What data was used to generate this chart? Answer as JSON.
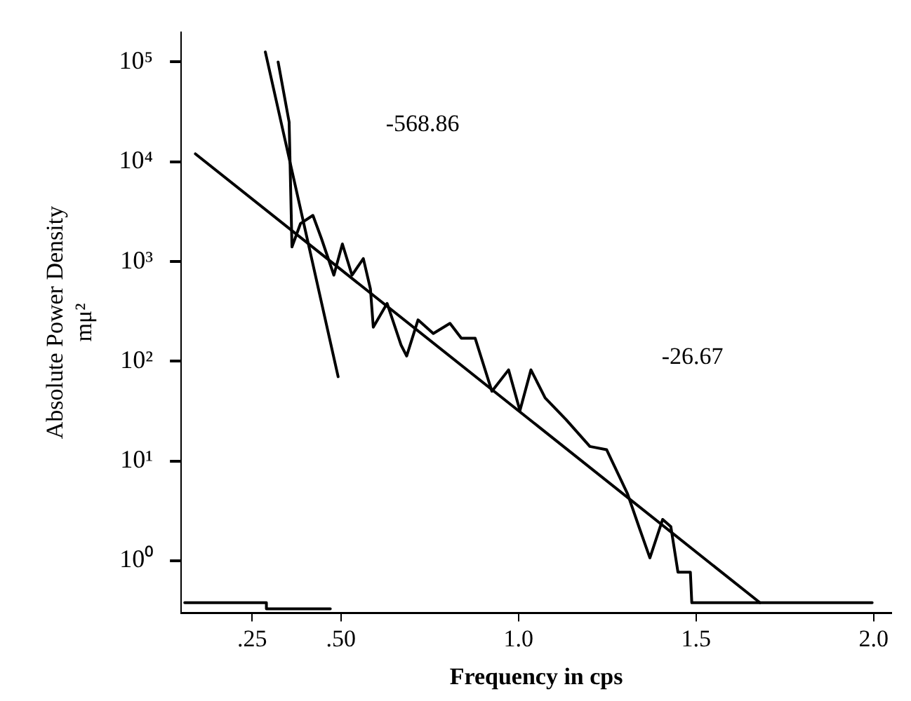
{
  "chart_data": {
    "type": "line",
    "xlabel": "Frequency in cps",
    "ylabel": "Absolute Power Density\nmμ²",
    "log": "y",
    "grid": false,
    "legend": false,
    "marker": "none",
    "line_style": "solid",
    "xlim": [
      0.05,
      2.05
    ],
    "xticks": [
      {
        "value": 0.25,
        "label": ".25"
      },
      {
        "value": 0.5,
        "label": ".50"
      },
      {
        "value": 1,
        "label": "1.0"
      },
      {
        "value": 1.5,
        "label": "1.5"
      },
      {
        "value": 2,
        "label": "2.0"
      }
    ],
    "ylim": [
      0.3,
      200000
    ],
    "yticks": [
      {
        "value": 1,
        "label": "10⁰"
      },
      {
        "value": 10,
        "label": "10¹"
      },
      {
        "value": 100,
        "label": "10²"
      },
      {
        "value": 1000,
        "label": "10³"
      },
      {
        "value": 10000,
        "label": "10⁴"
      },
      {
        "value": 100000,
        "label": "10⁵"
      }
    ],
    "series": [
      {
        "color": "#000000",
        "x": [
          0.323,
          0.354,
          0.362,
          0.386,
          0.421,
          0.445,
          0.48,
          0.504,
          0.531,
          0.563,
          0.583,
          0.591,
          0.63,
          0.669,
          0.685,
          0.717,
          0.76,
          0.807,
          0.839,
          0.878,
          0.925,
          0.972,
          1.004,
          1.035,
          1.075,
          1.134,
          1.201,
          1.248,
          1.307,
          1.339,
          1.37,
          1.406,
          1.429,
          1.449,
          1.484,
          1.488,
          1.996
        ],
        "values": [
          100000,
          25000,
          1400,
          2400,
          2900,
          1700,
          730,
          1500,
          730,
          1070,
          530,
          220,
          380,
          146,
          113,
          260,
          190,
          240,
          170,
          170,
          50,
          82,
          32,
          82,
          43,
          26,
          14,
          13,
          4.7,
          2.2,
          1.07,
          2.6,
          2.2,
          0.77,
          0.77,
          0.38,
          0.38
        ]
      },
      {
        "color": "#000000",
        "x": [
          0.06,
          0.29,
          0.29,
          0.47
        ],
        "values": [
          0.38,
          0.38,
          0.33,
          0.33
        ]
      },
      {
        "color": "#000000",
        "x": [
          0.09,
          1.68
        ],
        "values": [
          12000,
          0.38
        ]
      },
      {
        "color": "#000000",
        "x": [
          0.287,
          0.492
        ],
        "values": [
          126000,
          70
        ]
      }
    ],
    "annotations": [
      "-568.86",
      "-26.67"
    ]
  }
}
